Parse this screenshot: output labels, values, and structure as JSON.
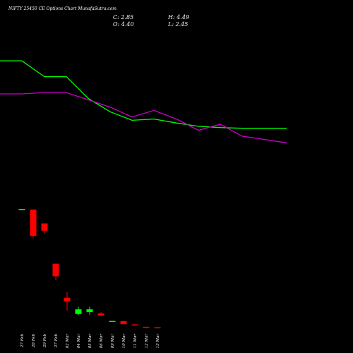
{
  "chart_data": {
    "type": "candlestick",
    "title": "NIFTY 25450 CE Options Chart MunafaSutra.com",
    "ohlc_readout": {
      "close": "C: 2.85",
      "high": "H: 4.49",
      "open": "O: 4.40",
      "low": "L: 2.45"
    },
    "categories": [
      "27 Feb",
      "28 Feb",
      "29 Feb",
      "27 Feb",
      "02 Mar",
      "04 Mar",
      "05 Mar",
      "06 Mar",
      "09 Mar",
      "10 Mar",
      "11 Mar",
      "12 Mar",
      "13 Mar"
    ],
    "candles": [
      {
        "open": 185.9,
        "high": 185.9,
        "low": 185.0,
        "close": 185.0,
        "color": "#00ff00"
      },
      {
        "open": 185.0,
        "high": 185.0,
        "low": 142.0,
        "close": 145.0,
        "color": "#ff0000"
      },
      {
        "open": 164.0,
        "high": 164.0,
        "low": 148.3,
        "close": 153.0,
        "color": "#ff0000"
      },
      {
        "open": 103.0,
        "high": 103.0,
        "low": 78.0,
        "close": 84.0,
        "color": "#ff0000"
      },
      {
        "open": 51.5,
        "high": 60.0,
        "low": 32.0,
        "close": 46.0,
        "color": "#ff0000"
      },
      {
        "open": 27.0,
        "high": 38.0,
        "low": 25.5,
        "close": 34.0,
        "color": "#00ff00"
      },
      {
        "open": 30.0,
        "high": 38.0,
        "low": 25.5,
        "close": 34.0,
        "color": "#00ff00"
      },
      {
        "open": 27.8,
        "high": 30.0,
        "low": 24.4,
        "close": 24.6,
        "color": "#ff0000"
      },
      {
        "open": 16.0,
        "high": 16.6,
        "low": 15.4,
        "close": 16.5,
        "color": "#00ff00"
      },
      {
        "open": 16.2,
        "high": 16.9,
        "low": 11.3,
        "close": 11.5,
        "color": "#ff0000"
      },
      {
        "open": 11.2,
        "high": 11.6,
        "low": 9.8,
        "close": 10.0,
        "color": "#ff0000"
      },
      {
        "open": 7.6,
        "high": 7.6,
        "low": 7.2,
        "close": 7.2,
        "color": "#ff0000"
      },
      {
        "open": 6.9,
        "high": 6.9,
        "low": 6.7,
        "close": 6.7,
        "color": "#ff0000"
      }
    ],
    "overlay_lines": [
      {
        "color": "#00ff00",
        "x": [
          0,
          1,
          2,
          3,
          4,
          5,
          6,
          7,
          8,
          9,
          10,
          11,
          12
        ],
        "values": [
          410,
          410,
          386,
          386,
          353,
          333,
          320,
          322,
          316,
          311,
          309,
          308,
          308
        ]
      },
      {
        "color": "#cc00cc",
        "x": [
          0,
          1,
          2,
          3,
          4,
          5,
          6,
          7,
          8,
          9,
          10,
          11,
          12
        ],
        "values": [
          360,
          360,
          362,
          362,
          351,
          340,
          325,
          335,
          322,
          305,
          314,
          296,
          286
        ]
      }
    ],
    "ylim": [
      0,
      470
    ],
    "grid": false
  }
}
